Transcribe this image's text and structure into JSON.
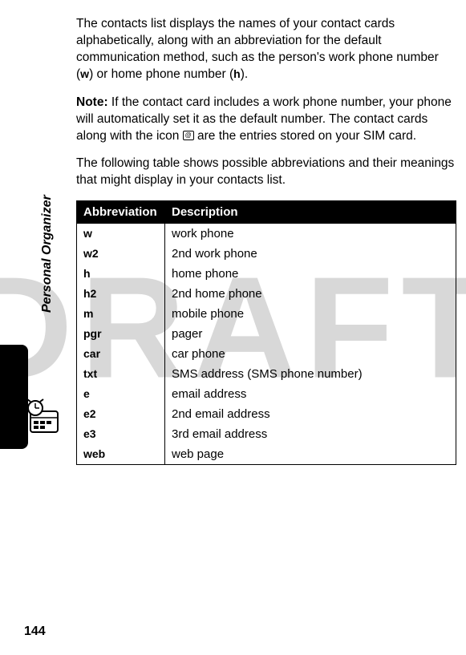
{
  "watermark": "DRAFT",
  "sidebar_title": "Personal Organizer",
  "page_number": "144",
  "paragraphs": {
    "p1_part1": "The contacts list displays the names of your contact cards alphabetically, along with an abbreviation for the default communication method, such as the person's work phone number (",
    "p1_abbr1": "w",
    "p1_part2": ") or home phone number (",
    "p1_abbr2": "h",
    "p1_part3": ").",
    "p2_label": "Note:",
    "p2_part1": " If the contact card includes a work phone number, your phone will automatically set it as the default number. The contact cards along with the icon ",
    "p2_part2": " are the entries stored on your SIM card.",
    "p3": "The following table shows possible abbreviations and their meanings that might display in your contacts list."
  },
  "table": {
    "headers": {
      "col1": "Abbreviation",
      "col2": "Description"
    },
    "rows": [
      {
        "abbr": "w",
        "desc": "work phone"
      },
      {
        "abbr": "w2",
        "desc": "2nd work phone"
      },
      {
        "abbr": "h",
        "desc": "home phone"
      },
      {
        "abbr": "h2",
        "desc": "2nd home phone"
      },
      {
        "abbr": "m",
        "desc": "mobile phone"
      },
      {
        "abbr": "pgr",
        "desc": "pager"
      },
      {
        "abbr": "car",
        "desc": "car phone"
      },
      {
        "abbr": "txt",
        "desc": "SMS address (SMS phone number)"
      },
      {
        "abbr": "e",
        "desc": "email address"
      },
      {
        "abbr": "e2",
        "desc": "2nd email address"
      },
      {
        "abbr": "e3",
        "desc": "3rd email address"
      },
      {
        "abbr": "web",
        "desc": "web page"
      }
    ]
  }
}
